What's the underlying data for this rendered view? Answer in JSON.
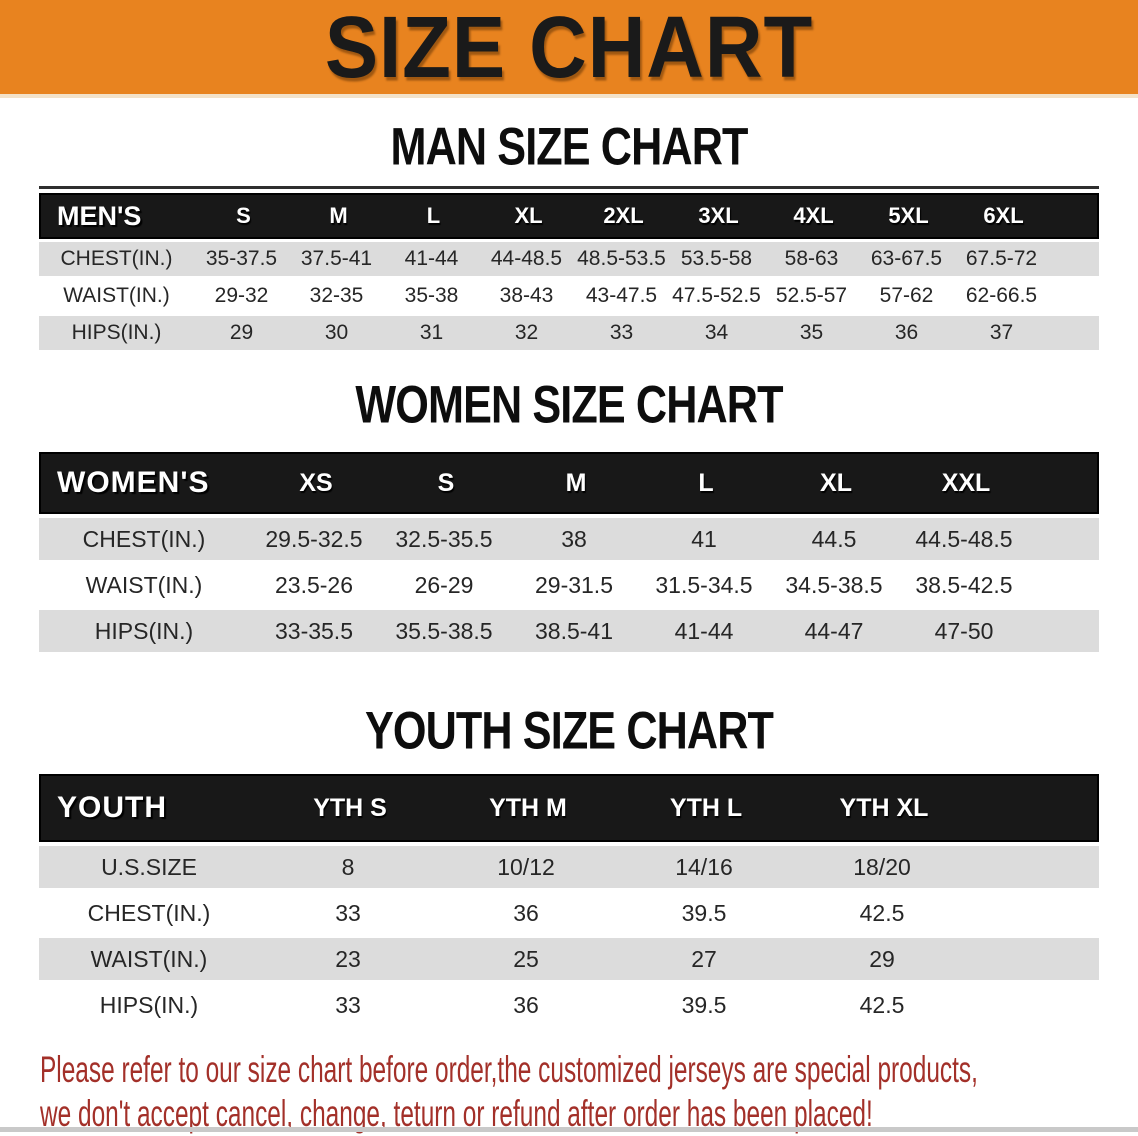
{
  "banner": {
    "title": "SIZE CHART"
  },
  "colors": {
    "banner_background": "#E8831F",
    "table_header_background": "#181818",
    "row_stripe": "#DCDCDC",
    "disclaimer_text": "#A33029"
  },
  "sections": [
    {
      "heading": "MAN SIZE CHART",
      "corner": "MEN'S",
      "columns": [
        "S",
        "M",
        "L",
        "XL",
        "2XL",
        "3XL",
        "4XL",
        "5XL",
        "6XL"
      ],
      "rows": [
        {
          "label": "CHEST(IN.)",
          "values": [
            "35-37.5",
            "37.5-41",
            "41-44",
            "44-48.5",
            "48.5-53.5",
            "53.5-58",
            "58-63",
            "63-67.5",
            "67.5-72"
          ]
        },
        {
          "label": "WAIST(IN.)",
          "values": [
            "29-32",
            "32-35",
            "35-38",
            "38-43",
            "43-47.5",
            "47.5-52.5",
            "52.5-57",
            "57-62",
            "62-66.5"
          ]
        },
        {
          "label": "HIPS(IN.)",
          "values": [
            "29",
            "30",
            "31",
            "32",
            "33",
            "34",
            "35",
            "36",
            "37"
          ]
        }
      ]
    },
    {
      "heading": "WOMEN SIZE CHART",
      "corner": "WOMEN'S",
      "columns": [
        "XS",
        "S",
        "M",
        "L",
        "XL",
        "XXL"
      ],
      "rows": [
        {
          "label": "CHEST(IN.)",
          "values": [
            "29.5-32.5",
            "32.5-35.5",
            "38",
            "41",
            "44.5",
            "44.5-48.5"
          ]
        },
        {
          "label": "WAIST(IN.)",
          "values": [
            "23.5-26",
            "26-29",
            "29-31.5",
            "31.5-34.5",
            "34.5-38.5",
            "38.5-42.5"
          ]
        },
        {
          "label": "HIPS(IN.)",
          "values": [
            "33-35.5",
            "35.5-38.5",
            "38.5-41",
            "41-44",
            "44-47",
            "47-50"
          ]
        }
      ]
    },
    {
      "heading": "YOUTH SIZE CHART",
      "corner": "YOUTH",
      "columns": [
        "YTH S",
        "YTH M",
        "YTH L",
        "YTH XL"
      ],
      "rows": [
        {
          "label": "U.S.SIZE",
          "values": [
            "8",
            "10/12",
            "14/16",
            "18/20"
          ]
        },
        {
          "label": "CHEST(IN.)",
          "values": [
            "33",
            "36",
            "39.5",
            "42.5"
          ]
        },
        {
          "label": "WAIST(IN.)",
          "values": [
            "23",
            "25",
            "27",
            "29"
          ]
        },
        {
          "label": "HIPS(IN.)",
          "values": [
            "33",
            "36",
            "39.5",
            "42.5"
          ]
        }
      ]
    }
  ],
  "disclaimer": {
    "line1": "Please refer to our size chart before order,the customized jerseys are special products,",
    "line2": "we don't accept cancel, change, teturn or refund after order has been placed!"
  }
}
